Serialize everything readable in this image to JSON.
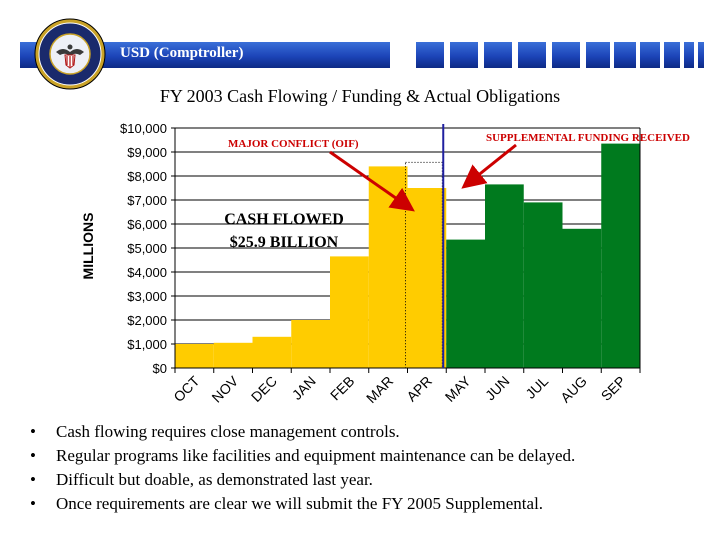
{
  "header": {
    "organization": "USD (Comptroller)"
  },
  "colors": {
    "cash_flowed": "#ffcc00",
    "actual": "#007a1e",
    "header_blue": "#1c44b8",
    "annotation": "#cc0000",
    "divider": "#2020a0"
  },
  "chart_data": {
    "type": "bar",
    "title": "FY 2003 Cash Flowing / Funding & Actual Obligations",
    "xlabel": "",
    "ylabel": "MILLIONS",
    "ylim": [
      0,
      10000
    ],
    "yticks": [
      "$10,000",
      "$9,000",
      "$8,000",
      "$7,000",
      "$6,000",
      "$5,000",
      "$4,000",
      "$3,000",
      "$2,000",
      "$1,000",
      "$0"
    ],
    "categories": [
      "OCT",
      "NOV",
      "DEC",
      "JAN",
      "FEB",
      "MAR",
      "APR",
      "MAY",
      "JUN",
      "JUL",
      "AUG",
      "SEP"
    ],
    "values": [
      1000,
      1050,
      1300,
      2000,
      4650,
      8400,
      7500,
      5350,
      7650,
      6900,
      5800,
      9350
    ],
    "bar_series": [
      "cash_flowed",
      "cash_flowed",
      "cash_flowed",
      "cash_flowed",
      "cash_flowed",
      "cash_flowed",
      "cash_flowed",
      "actual",
      "actual",
      "actual",
      "actual",
      "actual"
    ],
    "grid": true,
    "annotations": {
      "major_conflict": "MAJOR CONFLICT (OIF)",
      "supplemental": "SUPPLEMENTAL FUNDING  RECEIVED",
      "cash_flowed_line1": "CASH FLOWED",
      "cash_flowed_line2": "$25.9 BILLION"
    }
  },
  "bullets": [
    "Cash flowing requires close management controls.",
    "Regular programs like facilities and equipment maintenance can be delayed.",
    "Difficult but doable, as demonstrated last year.",
    "Once requirements are clear we will submit the FY 2005 Supplemental."
  ]
}
